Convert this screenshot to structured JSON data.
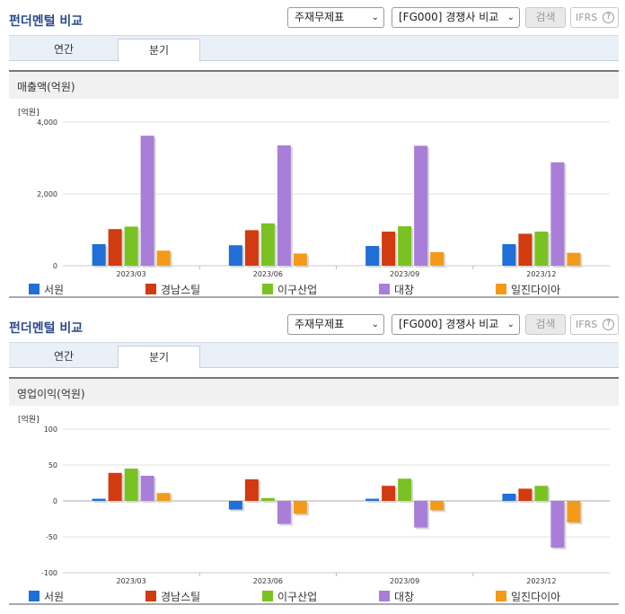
{
  "panels": [
    {
      "title": "펀더멘털 비교",
      "select1": "주재무제표",
      "select2": "[FG000] 경쟁사 비교",
      "search_label": "검색",
      "ifrs_label": "IFRS",
      "ifrs_help": "?",
      "tabs": [
        "연간",
        "분기"
      ],
      "active_tab": "분기",
      "section_title": "매출액(억원)",
      "unit_label": "[억원]"
    },
    {
      "title": "펀더멘털 비교",
      "select1": "주재무제표",
      "select2": "[FG000] 경쟁사 비교",
      "search_label": "검색",
      "ifrs_label": "IFRS",
      "ifrs_help": "?",
      "tabs": [
        "연간",
        "분기"
      ],
      "active_tab": "분기",
      "section_title": "영업이익(억원)",
      "unit_label": "[억원]"
    }
  ],
  "chart_data": [
    {
      "type": "bar",
      "title": "매출액(억원)",
      "categories": [
        "2023/03",
        "2023/06",
        "2023/09",
        "2023/12"
      ],
      "ylim": [
        0,
        4000
      ],
      "yticks": [
        0,
        2000,
        4000
      ],
      "ytick_labels": [
        "0",
        "2,000",
        "4,000"
      ],
      "legend_position": "bottom",
      "series": [
        {
          "name": "서원",
          "color": "#1f6fd6",
          "values": [
            600,
            570,
            550,
            600
          ]
        },
        {
          "name": "경남스틸",
          "color": "#d23a0f",
          "values": [
            1020,
            990,
            950,
            890
          ]
        },
        {
          "name": "이구산업",
          "color": "#7ac224",
          "values": [
            1090,
            1180,
            1100,
            950
          ]
        },
        {
          "name": "대창",
          "color": "#a87ed8",
          "values": [
            3620,
            3350,
            3340,
            2880
          ]
        },
        {
          "name": "일진다이아",
          "color": "#f49a18",
          "values": [
            420,
            340,
            380,
            360
          ]
        }
      ]
    },
    {
      "type": "bar",
      "title": "영업이익(억원)",
      "categories": [
        "2023/03",
        "2023/06",
        "2023/09",
        "2023/12"
      ],
      "ylim": [
        -100,
        100
      ],
      "yticks": [
        -100,
        -50,
        0,
        50,
        100
      ],
      "ytick_labels": [
        "-100",
        "-50",
        "0",
        "50",
        "100"
      ],
      "legend_position": "bottom",
      "series": [
        {
          "name": "서원",
          "color": "#1f6fd6",
          "values": [
            3,
            -12,
            3,
            10
          ]
        },
        {
          "name": "경남스틸",
          "color": "#d23a0f",
          "values": [
            39,
            30,
            21,
            17
          ]
        },
        {
          "name": "이구산업",
          "color": "#7ac224",
          "values": [
            45,
            4,
            31,
            21
          ]
        },
        {
          "name": "대창",
          "color": "#a87ed8",
          "values": [
            35,
            -32,
            -37,
            -65
          ]
        },
        {
          "name": "일진다이아",
          "color": "#f49a18",
          "values": [
            11,
            -18,
            -13,
            -30
          ]
        }
      ]
    }
  ]
}
